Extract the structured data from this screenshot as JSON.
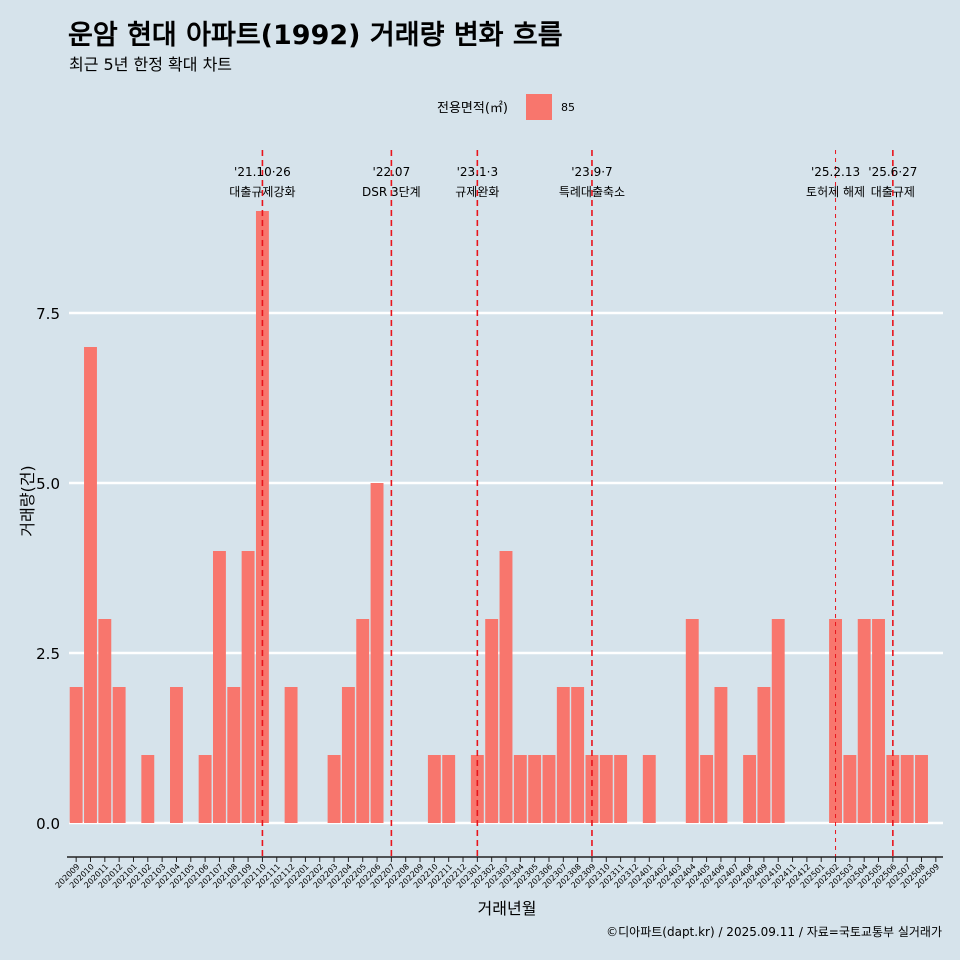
{
  "chart_data": {
    "type": "bar",
    "title": "운암 현대 아파트(1992) 거래량 변화 흐름",
    "subtitle": "최근 5년 한정 확대 차트",
    "xlabel": "거래년월",
    "ylabel": "거래량(건)",
    "ylim": [
      0,
      9
    ],
    "yticks": [
      "0.0",
      "2.5",
      "5.0",
      "7.5"
    ],
    "ytick_values": [
      0,
      2.5,
      5,
      7.5
    ],
    "grid": "horizontal",
    "legend": {
      "title": "전용면적(㎡)",
      "position": "top",
      "items": [
        {
          "label": "85",
          "color": "#f8766d"
        }
      ]
    },
    "categories": [
      "202009",
      "202010",
      "202011",
      "202012",
      "202101",
      "202102",
      "202103",
      "202104",
      "202105",
      "202106",
      "202107",
      "202108",
      "202109",
      "202110",
      "202111",
      "202112",
      "202201",
      "202202",
      "202203",
      "202204",
      "202205",
      "202206",
      "202207",
      "202208",
      "202209",
      "202210",
      "202211",
      "202212",
      "202301",
      "202302",
      "202303",
      "202304",
      "202305",
      "202306",
      "202307",
      "202308",
      "202309",
      "202310",
      "202311",
      "202312",
      "202401",
      "202402",
      "202403",
      "202404",
      "202405",
      "202406",
      "202407",
      "202408",
      "202409",
      "202410",
      "202411",
      "202412",
      "202501",
      "202502",
      "202503",
      "202504",
      "202505",
      "202506",
      "202507",
      "202508",
      "202509"
    ],
    "series": [
      {
        "name": "85",
        "color": "#f8766d",
        "values": [
          2,
          7,
          3,
          2,
          0,
          1,
          0,
          2,
          0,
          1,
          4,
          2,
          4,
          9,
          0,
          2,
          0,
          0,
          1,
          2,
          3,
          5,
          0,
          0,
          0,
          1,
          1,
          0,
          1,
          3,
          4,
          1,
          1,
          1,
          2,
          2,
          1,
          1,
          1,
          0,
          1,
          0,
          0,
          3,
          1,
          2,
          0,
          1,
          2,
          3,
          0,
          0,
          0,
          3,
          1,
          3,
          3,
          1,
          1,
          1,
          0
        ]
      }
    ],
    "events": [
      {
        "category": "202110",
        "date": "'21.10·26",
        "label": "대출규제강화",
        "style": "dashed"
      },
      {
        "category": "202207",
        "date": "'22.07",
        "label": "DSR 3단계",
        "style": "dashed"
      },
      {
        "category": "202301",
        "date": "'23.1·3",
        "label": "규제완화",
        "style": "dashed"
      },
      {
        "category": "202309",
        "date": "'23.9·7",
        "label": "특례대출축소",
        "style": "dashed"
      },
      {
        "category": "202502",
        "date": "'25.2.13",
        "label": "토허제 해제",
        "style": "thin-dashed"
      },
      {
        "category": "202506",
        "date": "'25.6·27",
        "label": "대출규제",
        "style": "dashed"
      }
    ],
    "event_color": "#e8141c"
  },
  "caption": "©디아파트(dapt.kr) / 2025.09.11 / 자료=국토교통부 실거래가"
}
